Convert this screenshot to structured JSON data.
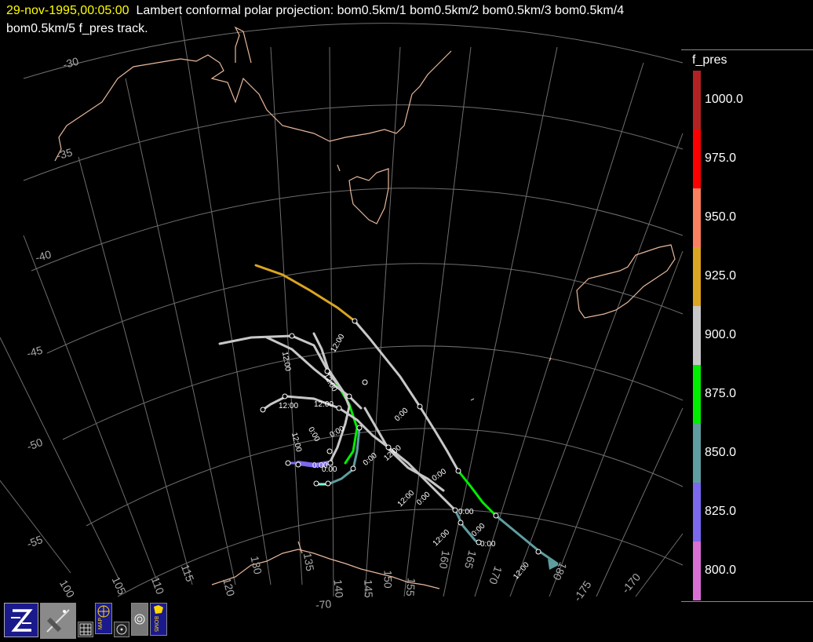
{
  "header": {
    "date": "29-nov-1995,00:05:00",
    "title_line1": "Lambert conformal polar projection:  bom0.5km/1 bom0.5km/2 bom0.5km/3 bom0.5km/4",
    "title_line2": "bom0.5km/5 f_pres track."
  },
  "legend": {
    "title": "f_pres",
    "entries": [
      {
        "label": "1000.0",
        "color": "#b22222"
      },
      {
        "label": "975.0",
        "color": "#ff0000"
      },
      {
        "label": "950.0",
        "color": "#fa8060"
      },
      {
        "label": "925.0",
        "color": "#daa520"
      },
      {
        "label": "900.0",
        "color": "#c8c8c8"
      },
      {
        "label": "875.0",
        "color": "#00ee00"
      },
      {
        "label": "850.0",
        "color": "#5f9ea0"
      },
      {
        "label": "825.0",
        "color": "#7b68ee"
      },
      {
        "label": "800.0",
        "color": "#da70d6"
      }
    ]
  },
  "latitude_labels": [
    "-30",
    "-35",
    "-40",
    "-45",
    "-50",
    "-55",
    "-70"
  ],
  "longitude_labels": [
    "100",
    "105",
    "110",
    "115",
    "120",
    "125",
    "130",
    "135",
    "140",
    "145",
    "150",
    "155",
    "160",
    "165",
    "170",
    "175",
    "180",
    "-175",
    "-170"
  ],
  "track_time_labels": [
    "12:00",
    "0:00"
  ],
  "toolbar": {
    "zoom_icon": "zeb-z-logo-icon",
    "satellite_icon": "satellite-view-icon",
    "grid_icon": "grid-icon",
    "map_label": "MAP",
    "target_icon": "target-icon",
    "radar_icon": "radar-icon",
    "bom_label": "BOM5"
  }
}
